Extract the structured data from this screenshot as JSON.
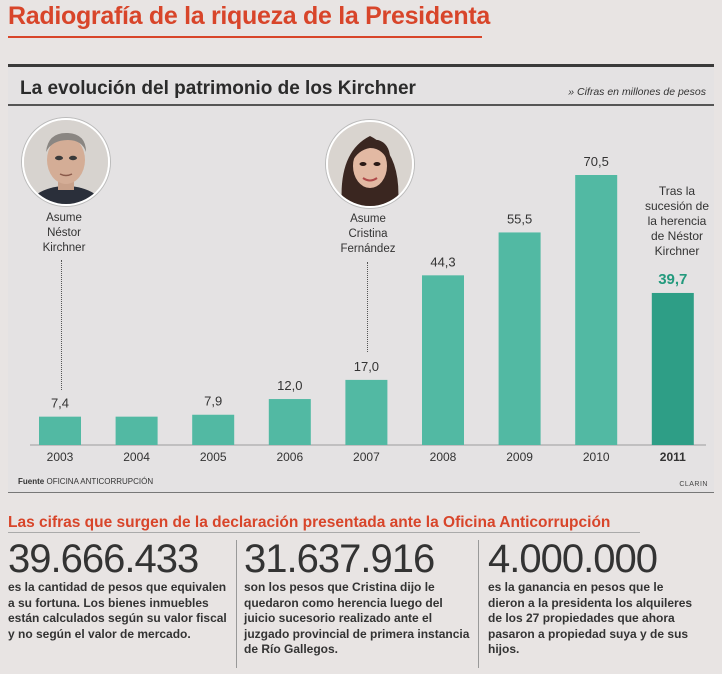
{
  "headline": "Radiografía de la riqueza de la Presidenta",
  "subtitle": "La evolución del patrimonio de los Kirchner",
  "units_note": "» Cifras en millones de pesos",
  "annotations": {
    "nestor": "Asume\nNéstor\nKirchner",
    "cristina": "Asume\nCristina\nFernández",
    "herencia": "Tras la\nsucesión de\nla herencia\nde Néstor\nKirchner"
  },
  "colors": {
    "bar": "#52b9a3",
    "bar_last": "#2e9e86",
    "accent": "#d8452a",
    "highlight_value": "#239a7d"
  },
  "chart_data": {
    "type": "bar",
    "title": "La evolución del patrimonio de los Kirchner",
    "categories": [
      "2003",
      "2004",
      "2005",
      "2006",
      "2007",
      "2008",
      "2009",
      "2010",
      "2011"
    ],
    "values": [
      7.4,
      7.4,
      7.9,
      12.0,
      17.0,
      44.3,
      55.5,
      70.5,
      39.7
    ],
    "labels": [
      "7,4",
      "",
      "7,9",
      "12,0",
      "17,0",
      "44,3",
      "55,5",
      "70,5",
      "39,7"
    ],
    "xlabel": "",
    "ylabel": "",
    "ylim": [
      0,
      75
    ],
    "grid": false,
    "legend": "none"
  },
  "source_label": "Fuente",
  "source_value": "OFICINA ANTICORRUPCIÓN",
  "credit": "CLARIN",
  "section_title": "Las cifras que surgen de la declaración presentada ante la Oficina Anticorrupción",
  "facts": [
    {
      "number": "39.666.433",
      "text": "es la cantidad de pesos que equivalen a su fortuna. Los bienes inmuebles están calculados según su valor fiscal y no según el valor de mercado."
    },
    {
      "number": "31.637.916",
      "text": "son los pesos que Cristina dijo le quedaron como herencia luego del juicio sucesorio realizado ante el juzgado provincial de primera instancia de Río Gallegos."
    },
    {
      "number": "4.000.000",
      "text": "es la ganancia en pesos que le dieron a la presidenta los alquileres de los 27 propiedades que ahora pasaron a propiedad suya y de sus hijos."
    }
  ]
}
